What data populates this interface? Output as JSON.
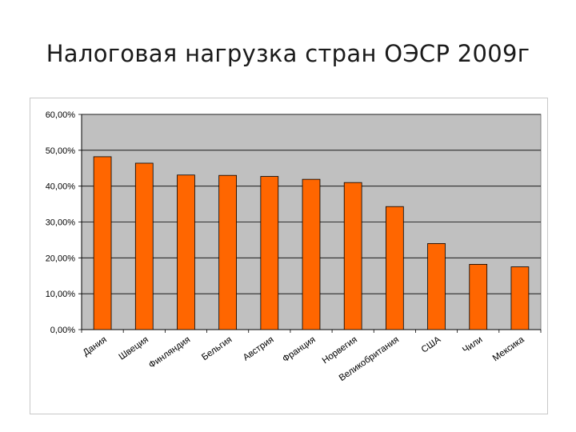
{
  "slide": {
    "title": "Налоговая нагрузка стран ОЭСР 2009г"
  },
  "colors": {
    "plot_background": "#c0c0c0",
    "bar_fill": "#ff6600",
    "bar_stroke": "#000000",
    "gridline": "#000000"
  },
  "chart_data": {
    "type": "bar",
    "title": "",
    "xlabel": "",
    "ylabel": "",
    "categories": [
      "Дания",
      "Швеция",
      "Финляндия",
      "Бельгия",
      "Австрия",
      "Франция",
      "Норвегия",
      "Великобритания",
      "США",
      "Чили",
      "Мексика"
    ],
    "values": [
      48.2,
      46.4,
      43.1,
      43.0,
      42.7,
      41.9,
      41.0,
      34.3,
      24.0,
      18.2,
      17.5
    ],
    "ylim": [
      0,
      60
    ],
    "yticks": [
      0,
      10,
      20,
      30,
      40,
      50,
      60
    ],
    "ytick_labels": [
      "0,00%",
      "10,00%",
      "20,00%",
      "30,00%",
      "40,00%",
      "50,00%",
      "60,00%"
    ],
    "grid": true,
    "legend": "none"
  }
}
